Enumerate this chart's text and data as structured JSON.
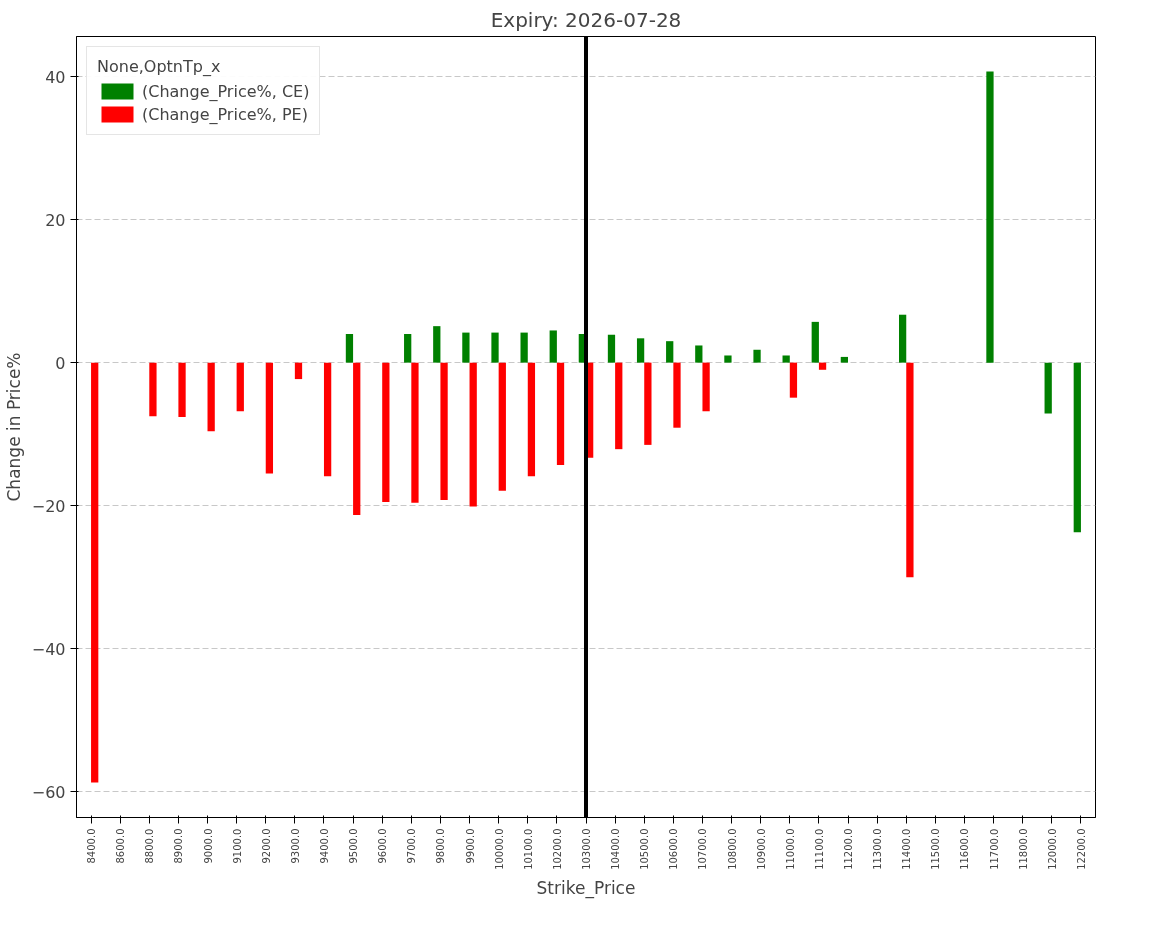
{
  "chart_data": {
    "type": "bar",
    "title": "Expiry: 2026-07-28",
    "xlabel": "Strike_Price",
    "ylabel": "Change in Price%",
    "legend_title": "None,OptnTp_x",
    "categories": [
      "8400.0",
      "8600.0",
      "8800.0",
      "8900.0",
      "9000.0",
      "9100.0",
      "9200.0",
      "9300.0",
      "9400.0",
      "9500.0",
      "9600.0",
      "9700.0",
      "9800.0",
      "9900.0",
      "10000.0",
      "10100.0",
      "10200.0",
      "10300.0",
      "10400.0",
      "10500.0",
      "10600.0",
      "10700.0",
      "10800.0",
      "10900.0",
      "11000.0",
      "11100.0",
      "11200.0",
      "11300.0",
      "11400.0",
      "11500.0",
      "11600.0",
      "11700.0",
      "11800.0",
      "12000.0",
      "12200.0"
    ],
    "series": [
      {
        "name": "(Change_Price%, CE)",
        "color": "#008000",
        "values": [
          null,
          null,
          null,
          null,
          null,
          null,
          null,
          null,
          null,
          4.0,
          null,
          4.0,
          5.1,
          4.2,
          4.2,
          4.2,
          4.5,
          4.0,
          3.9,
          3.4,
          3.0,
          2.4,
          1.0,
          1.8,
          1.0,
          5.7,
          0.8,
          null,
          6.7,
          null,
          null,
          40.7,
          null,
          -7.1,
          -23.7
        ]
      },
      {
        "name": "(Change_Price%, PE)",
        "color": "#ff0000",
        "values": [
          -58.7,
          null,
          -7.5,
          -7.6,
          -9.6,
          -6.8,
          -15.5,
          -2.3,
          -15.9,
          -21.3,
          -19.5,
          -19.6,
          -19.2,
          -20.1,
          -17.9,
          -15.9,
          -14.3,
          -13.3,
          -12.1,
          -11.5,
          -9.1,
          -6.8,
          null,
          null,
          -4.9,
          -1.0,
          null,
          null,
          -30.0,
          null,
          null,
          null,
          null,
          null,
          null
        ]
      }
    ],
    "ylim": [
      -63.6,
      45.6
    ],
    "yticks": [
      {
        "value": -60,
        "label": "−60"
      },
      {
        "value": -40,
        "label": "−40"
      },
      {
        "value": -20,
        "label": "−20"
      },
      0,
      20,
      40
    ],
    "grid": "y",
    "legend": "top left",
    "ref_lines": [
      {
        "axis": "x",
        "value": "10300.0",
        "color": "#000000"
      }
    ]
  }
}
